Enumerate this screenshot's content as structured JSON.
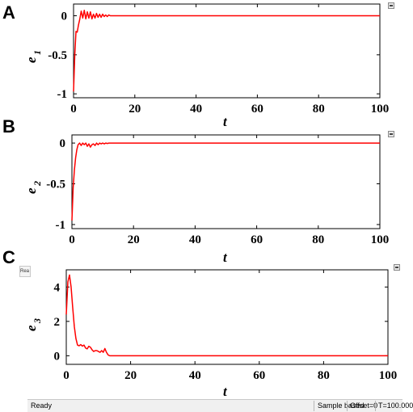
{
  "panels": [
    {
      "letter": "A",
      "ylabel": "e",
      "ysub": "1",
      "xlabel": "t"
    },
    {
      "letter": "B",
      "ylabel": "e",
      "ysub": "2",
      "xlabel": "t"
    },
    {
      "letter": "C",
      "ylabel": "e",
      "ysub": "3",
      "xlabel": "t"
    }
  ],
  "statusbar": {
    "ready": "Ready",
    "mode": "Sample based",
    "offset": "Offset=0",
    "time": "T=100.000"
  },
  "cut_label": "Rea",
  "line_color": "#ff0000",
  "chart_data": [
    {
      "type": "line",
      "title": "",
      "xlabel": "t",
      "ylabel": "e1",
      "xlim": [
        0,
        100
      ],
      "ylim": [
        -1.05,
        0.15
      ],
      "xticks": [
        0,
        20,
        40,
        60,
        80,
        100
      ],
      "yticks": [
        0,
        -0.5,
        -1
      ],
      "ytick_labels": [
        "0",
        "-0.5",
        "-1"
      ],
      "series": [
        {
          "color": "#ff0000",
          "x": [
            0,
            0.4,
            0.8,
            1.2,
            1.6,
            2.0,
            2.5,
            3.0,
            3.5,
            4.0,
            4.5,
            5.0,
            5.5,
            6.0,
            6.5,
            7.0,
            7.5,
            8.0,
            8.5,
            9.0,
            9.5,
            10.0,
            10.5,
            11.0,
            11.5,
            12.0,
            12.5,
            13.0,
            14.0,
            16.0,
            20.0,
            40.0,
            60.0,
            80.0,
            100.0
          ],
          "y": [
            -0.97,
            -0.5,
            -0.2,
            -0.21,
            -0.12,
            -0.05,
            0.06,
            -0.03,
            0.07,
            -0.04,
            0.05,
            -0.03,
            0.05,
            -0.04,
            0.02,
            -0.03,
            0.03,
            -0.02,
            0.02,
            -0.02,
            0.02,
            -0.01,
            0.01,
            -0.01,
            0.01,
            0.0,
            0.0,
            0.0,
            0.0,
            0.0,
            0.0,
            0.0,
            0.0,
            0.0,
            0.0
          ]
        }
      ]
    },
    {
      "type": "line",
      "title": "",
      "xlabel": "t",
      "ylabel": "e2",
      "xlim": [
        0,
        100
      ],
      "ylim": [
        -1.05,
        0.1
      ],
      "xticks": [
        0,
        20,
        40,
        60,
        80,
        100
      ],
      "yticks": [
        0,
        -0.5,
        -1
      ],
      "ytick_labels": [
        "0",
        "-0.5",
        "-1"
      ],
      "series": [
        {
          "color": "#ff0000",
          "x": [
            0,
            0.4,
            0.8,
            1.2,
            1.6,
            2.0,
            2.5,
            3.0,
            3.5,
            4.0,
            4.5,
            5.0,
            5.5,
            6.0,
            6.5,
            7.0,
            7.5,
            8.0,
            8.5,
            9.0,
            9.5,
            10.0,
            10.5,
            11.0,
            11.5,
            12.0,
            13.0,
            14.0,
            16.0,
            20.0,
            30.0,
            40.0,
            50.0,
            60.0,
            70.0,
            80.0,
            90.0,
            100.0
          ],
          "y": [
            -0.95,
            -0.55,
            -0.33,
            -0.18,
            -0.08,
            -0.02,
            0.0,
            -0.03,
            0.0,
            -0.02,
            0.0,
            -0.04,
            -0.01,
            -0.05,
            -0.02,
            -0.01,
            -0.03,
            0.0,
            -0.02,
            0.0,
            -0.01,
            0.0,
            -0.01,
            0.0,
            -0.005,
            0.0,
            0.0,
            0.0,
            0.0,
            0.0,
            0.0,
            0.0,
            0.0,
            0.0,
            0.0,
            0.0,
            0.0,
            0.0
          ]
        }
      ]
    },
    {
      "type": "line",
      "title": "",
      "xlabel": "t",
      "ylabel": "e3",
      "xlim": [
        0,
        100
      ],
      "ylim": [
        -0.5,
        5
      ],
      "xticks": [
        0,
        20,
        40,
        60,
        80,
        100
      ],
      "yticks": [
        0,
        2,
        4
      ],
      "ytick_labels": [
        "0",
        "2",
        "4"
      ],
      "series": [
        {
          "color": "#ff0000",
          "x": [
            0,
            0.5,
            1.0,
            1.5,
            2.0,
            2.5,
            3.0,
            3.5,
            4.0,
            4.5,
            5.0,
            5.5,
            6.0,
            6.5,
            7.0,
            7.5,
            8.0,
            8.5,
            9.0,
            9.5,
            10.0,
            10.5,
            11.0,
            11.5,
            12.0,
            12.5,
            13.0,
            13.5,
            14.0,
            15.0,
            20.0,
            40.0,
            60.0,
            80.0,
            100.0
          ],
          "y": [
            2.4,
            4.3,
            4.7,
            4.0,
            2.8,
            1.7,
            1.0,
            0.62,
            0.58,
            0.65,
            0.56,
            0.62,
            0.45,
            0.4,
            0.55,
            0.5,
            0.35,
            0.25,
            0.3,
            0.3,
            0.25,
            0.2,
            0.3,
            0.2,
            0.42,
            0.2,
            0.05,
            0.0,
            0.0,
            0.0,
            0.0,
            0.0,
            0.0,
            0.0,
            0.0
          ]
        }
      ]
    }
  ]
}
